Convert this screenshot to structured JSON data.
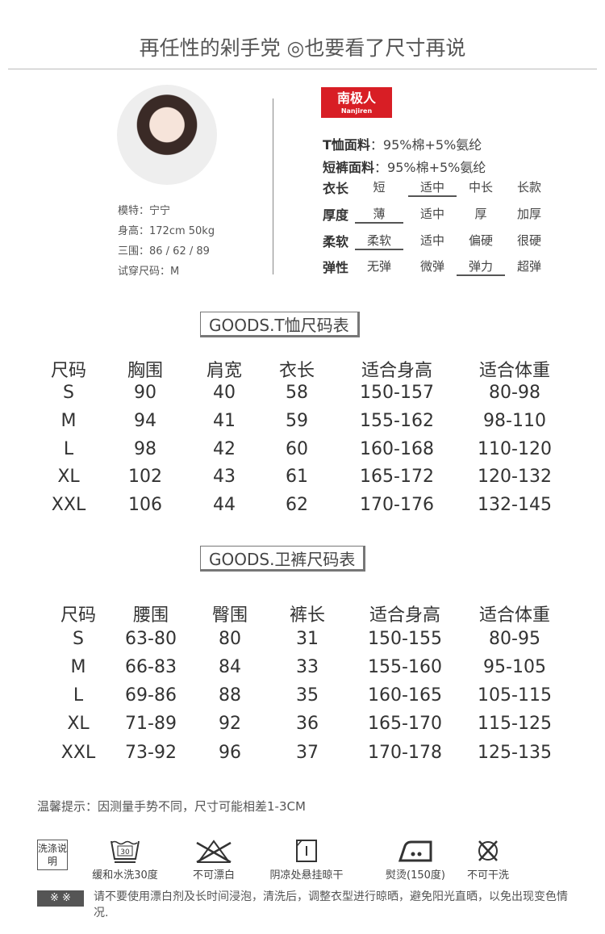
{
  "title": "再任性的剁手党 ◎也要看了尺寸再说",
  "model": {
    "name": "模特：宁宁",
    "height": "身高：172cm  50kg",
    "measure": "三围：86 / 62 / 89",
    "size": "试穿尺码：M"
  },
  "brand": {
    "cn": "南极人",
    "en": "Nanjiren",
    "color": "#d81e25"
  },
  "fabric": [
    {
      "label": "T恤面料",
      "value": "：95%棉+5%氨纶"
    },
    {
      "label": "短裤面料",
      "value": "：95%棉+5%氨纶"
    }
  ],
  "attributes": [
    {
      "label": "衣长",
      "options": [
        "短",
        "适中",
        "中长",
        "长款"
      ],
      "selected": 1
    },
    {
      "label": "厚度",
      "options": [
        "薄",
        "适中",
        "厚",
        "加厚"
      ],
      "selected": 0
    },
    {
      "label": "柔软",
      "options": [
        "柔软",
        "适中",
        "偏硬",
        "很硬"
      ],
      "selected": 0
    },
    {
      "label": "弹性",
      "options": [
        "无弹",
        "微弹",
        "弹力",
        "超弹"
      ],
      "selected": 2
    }
  ],
  "tshirt": {
    "title": "GOODS.T恤尺码表",
    "headers": [
      "尺码",
      "胸围",
      "肩宽",
      "衣长",
      "适合身高",
      "适合体重"
    ],
    "rows": [
      [
        "S",
        "90",
        "40",
        "58",
        "150-157",
        "80-98"
      ],
      [
        "M",
        "94",
        "41",
        "59",
        "155-162",
        "98-110"
      ],
      [
        "L",
        "98",
        "42",
        "60",
        "160-168",
        "110-120"
      ],
      [
        "XL",
        "102",
        "43",
        "61",
        "165-172",
        "120-132"
      ],
      [
        "XXL",
        "106",
        "44",
        "62",
        "170-176",
        "132-145"
      ]
    ]
  },
  "pants": {
    "title": "GOODS.卫裤尺码表",
    "headers": [
      "尺码",
      "腰围",
      "臀围",
      "裤长",
      "适合身高",
      "适合体重"
    ],
    "rows": [
      [
        "S",
        "63-80",
        "80",
        "31",
        "150-155",
        "80-95"
      ],
      [
        "M",
        "66-83",
        "84",
        "33",
        "155-160",
        "95-105"
      ],
      [
        "L",
        "69-86",
        "88",
        "35",
        "160-165",
        "105-115"
      ],
      [
        "XL",
        "71-89",
        "92",
        "36",
        "165-170",
        "115-125"
      ],
      [
        "XXL",
        "73-92",
        "96",
        "37",
        "170-178",
        "125-135"
      ]
    ]
  },
  "tip": "温馨提示：因测量手势不同，尺寸可能相差1-3CM",
  "care": {
    "label": "洗涤说明",
    "items": [
      {
        "icon": "wash-30-icon",
        "text": "缓和水洗30度",
        "num": "30"
      },
      {
        "icon": "no-bleach-icon",
        "text": "不可漂白"
      },
      {
        "icon": "hang-dry-shade-icon",
        "text": "阴凉处悬挂晾干"
      },
      {
        "icon": "iron-icon",
        "text": "熨烫(150度)"
      },
      {
        "icon": "no-dry-clean-icon",
        "text": "不可干洗"
      }
    ]
  },
  "notice": {
    "mark": "※ ※",
    "text": "请不要使用漂白剂及长时间浸泡，清洗后，调整衣型进行晾晒，避免阳光直晒，以免出现变色情况."
  }
}
